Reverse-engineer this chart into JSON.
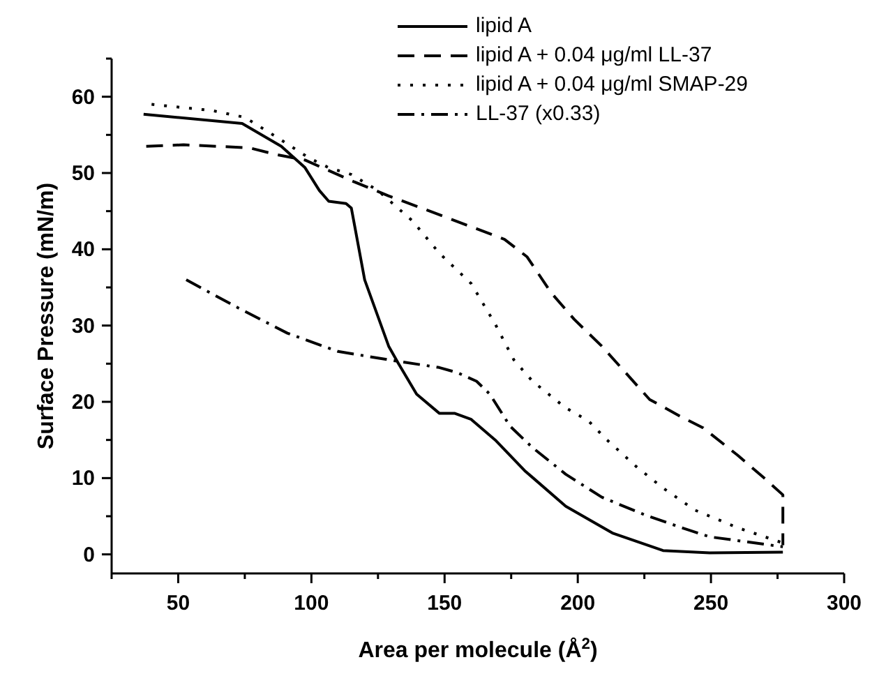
{
  "chart_data": {
    "type": "line",
    "xlabel": "Area per molecule (Å$^{2}$)",
    "ylabel": "Surface Pressure (mN/m)",
    "xlim": [
      25,
      300
    ],
    "xticks": [
      {
        "value": 25,
        "label": null
      },
      50,
      {
        "value": 75,
        "label": null
      },
      100,
      {
        "value": 125,
        "label": null
      },
      150,
      {
        "value": 175,
        "label": null
      },
      200,
      {
        "value": 225,
        "label": null
      },
      250,
      {
        "value": 275,
        "label": null
      },
      300
    ],
    "ylim": [
      -2.5,
      65
    ],
    "yticks": [
      0,
      {
        "value": 5,
        "label": null
      },
      10,
      {
        "value": 15,
        "label": null
      },
      20,
      {
        "value": 25,
        "label": null
      },
      30,
      {
        "value": 35,
        "label": null
      },
      40,
      {
        "value": 45,
        "label": null
      },
      50,
      {
        "value": 55,
        "label": null
      },
      60,
      {
        "value": 65,
        "label": null
      }
    ],
    "legend": "top right",
    "marker": "none",
    "series": [
      {
        "name": "lipid A",
        "color": "#000000",
        "line_style": "solid",
        "x": [
          37,
          74,
          88.7,
          97.6,
          103,
          106.5,
          113,
          115,
          120,
          129,
          132.7,
          139.5,
          148,
          153.7,
          160,
          169,
          180,
          195.5,
          213,
          232,
          249.5,
          277
        ],
        "values": [
          57.7,
          56.5,
          53.5,
          50.7,
          47.7,
          46.3,
          46,
          45.4,
          36,
          27.3,
          25,
          21,
          18.5,
          18.5,
          17.7,
          15,
          11,
          6.3,
          2.8,
          0.5,
          0.2,
          0.3
        ]
      },
      {
        "name": "lipid A + 0.04 μg/ml LL-37",
        "color": "#000000",
        "line_style": "dashed",
        "x": [
          38,
          52,
          76.7,
          87,
          97.6,
          115,
          129,
          146,
          172.5,
          181,
          190,
          198.7,
          209,
          218,
          227,
          239,
          247,
          260,
          270,
          277,
          277
        ],
        "values": [
          53.5,
          53.7,
          53.3,
          52.4,
          51.7,
          49,
          47,
          44.8,
          41.3,
          39,
          34.3,
          30.8,
          27.3,
          23.8,
          20.3,
          18,
          16.6,
          13,
          10,
          7.8,
          1.2
        ]
      },
      {
        "name": "lipid A + 0.04 μg/ml SMAP-29",
        "color": "#000000",
        "line_style": "dotted",
        "x": [
          40,
          62.5,
          75,
          87,
          99,
          106.5,
          115,
          125,
          138,
          148,
          160,
          169,
          176,
          183,
          195.5,
          204,
          211,
          222,
          232,
          244,
          260,
          277
        ],
        "values": [
          59,
          58.2,
          57.3,
          54.7,
          52,
          50.7,
          49.8,
          47.7,
          43.7,
          39.5,
          35.5,
          30.2,
          25.5,
          22.7,
          19.2,
          17.5,
          15,
          11.5,
          8.7,
          5.8,
          3.5,
          1.5
        ]
      },
      {
        "name": "LL-37 (x0.33)",
        "color": "#000000",
        "line_style": "dashdot",
        "x": [
          53,
          71.5,
          91,
          110,
          132.7,
          148,
          155,
          162,
          167,
          174.6,
          183,
          195.5,
          209,
          225,
          239,
          249.5,
          277
        ],
        "values": [
          36,
          32.5,
          29,
          26.6,
          25.3,
          24.5,
          23.8,
          22.7,
          21,
          16.8,
          14,
          10.5,
          7.5,
          5.2,
          3.5,
          2.3,
          1
        ]
      }
    ]
  }
}
